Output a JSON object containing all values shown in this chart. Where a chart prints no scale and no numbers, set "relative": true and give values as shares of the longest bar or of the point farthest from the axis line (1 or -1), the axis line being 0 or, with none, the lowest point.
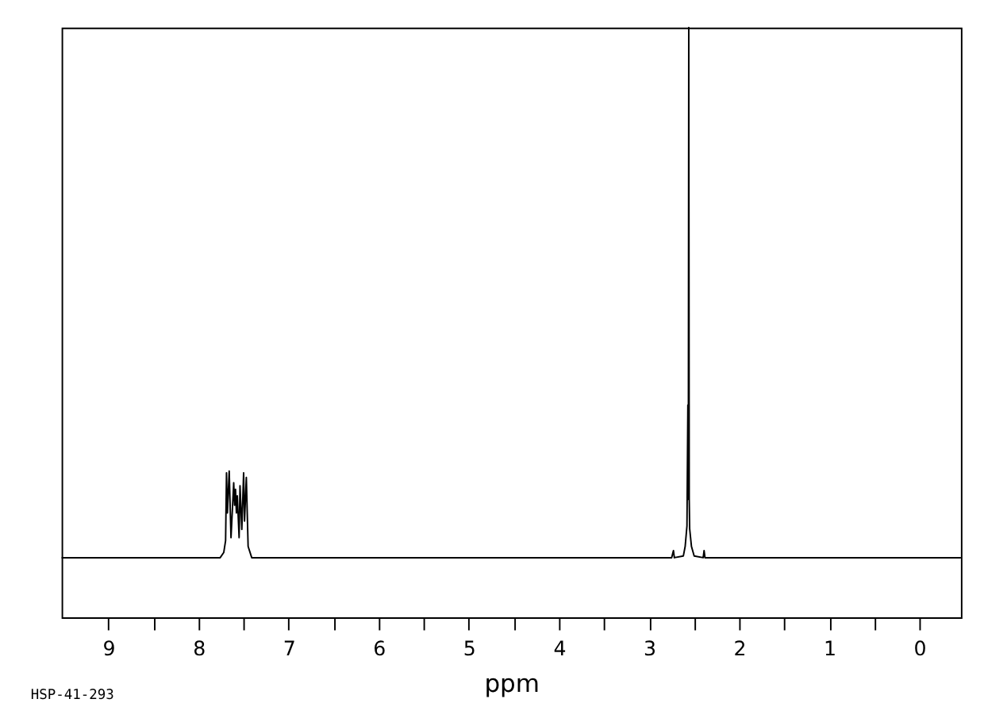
{
  "chart_data": {
    "type": "line",
    "xlabel": "ppm",
    "annotations": [
      "HSP-41-293"
    ],
    "relative": true,
    "marker": "none",
    "line_style": "solid",
    "xlim": [
      9.52,
      -0.46
    ],
    "xticks": [
      9,
      {
        "value": 8.5,
        "label": null
      },
      8,
      {
        "value": 7.5,
        "label": null
      },
      7,
      {
        "value": 6.5,
        "label": null
      },
      6,
      {
        "value": 5.5,
        "label": null
      },
      5,
      {
        "value": 4.5,
        "label": null
      },
      4,
      {
        "value": 3.5,
        "label": null
      },
      3,
      {
        "value": 2.5,
        "label": null
      },
      2,
      {
        "value": 1.5,
        "label": null
      },
      1,
      {
        "value": 0.5,
        "label": null
      },
      0
    ],
    "x": [
      9.52,
      7.76,
      7.72,
      7.7,
      7.69,
      7.68,
      7.66,
      7.64,
      7.61,
      7.6,
      7.59,
      7.58,
      7.57,
      7.55,
      7.54,
      7.52,
      7.5,
      7.49,
      7.47,
      7.45,
      7.41,
      2.75,
      2.73,
      2.72,
      2.62,
      2.6,
      2.58,
      2.57,
      2.565,
      2.56,
      2.555,
      2.55,
      2.53,
      2.5,
      2.4,
      2.39,
      2.38,
      -0.46
    ],
    "series": [
      {
        "color": "#000000",
        "values": [
          0.101,
          0.101,
          0.11,
          0.13,
          0.245,
          0.177,
          0.248,
          0.135,
          0.228,
          0.19,
          0.217,
          0.177,
          0.206,
          0.135,
          0.223,
          0.149,
          0.245,
          0.163,
          0.237,
          0.12,
          0.101,
          0.101,
          0.113,
          0.101,
          0.104,
          0.12,
          0.155,
          0.36,
          0.2,
          1.0,
          0.2,
          0.15,
          0.12,
          0.104,
          0.101,
          0.113,
          0.101,
          0.101
        ]
      }
    ]
  }
}
